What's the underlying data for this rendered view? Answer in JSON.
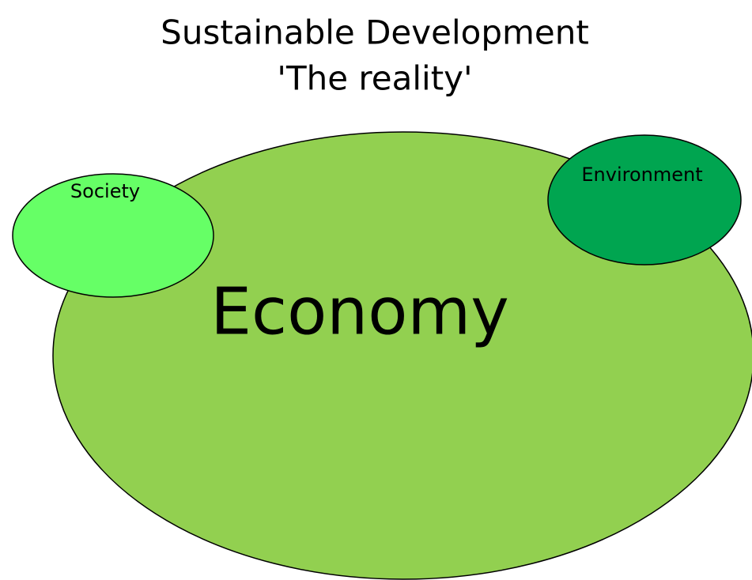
{
  "title": {
    "line1": "Sustainable Development",
    "line2": "'The reality'"
  },
  "nodes": [
    {
      "label": "Economy"
    },
    {
      "label": "Society"
    },
    {
      "label": "Environment"
    }
  ]
}
